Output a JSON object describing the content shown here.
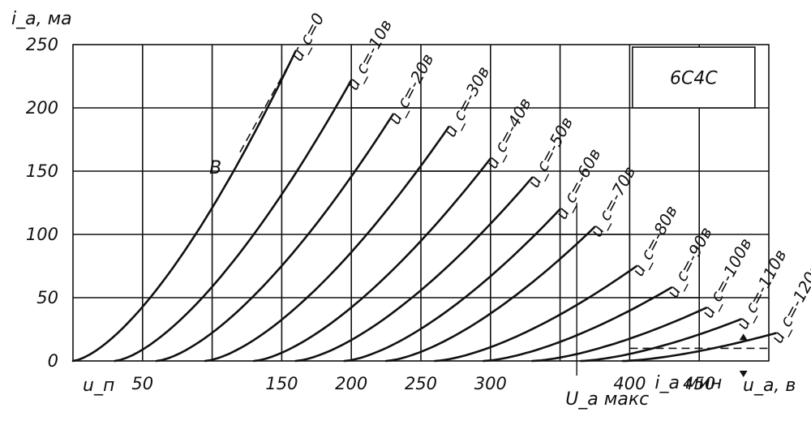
{
  "chart_data": {
    "type": "line",
    "title": "6С4С",
    "xlabel": "u_a, в",
    "ylabel": "i_a, ма",
    "xlim": [
      0,
      500
    ],
    "ylim": [
      0,
      250
    ],
    "x_ticks": [
      {
        "value": 50,
        "label": "50"
      },
      {
        "value": 150,
        "label": "150"
      },
      {
        "value": 200,
        "label": "200"
      },
      {
        "value": 250,
        "label": "250"
      },
      {
        "value": 300,
        "label": "300"
      },
      {
        "value": 400,
        "label": "400"
      },
      {
        "value": 450,
        "label": "450"
      }
    ],
    "y_ticks": [
      {
        "value": 0,
        "label": "0"
      },
      {
        "value": 50,
        "label": "50"
      },
      {
        "value": 100,
        "label": "100"
      },
      {
        "value": 150,
        "label": "150"
      },
      {
        "value": 200,
        "label": "200"
      },
      {
        "value": 250,
        "label": "250"
      }
    ],
    "grid": true,
    "series": [
      {
        "name": "u_c=0",
        "start": 0,
        "end": [
          160,
          245
        ]
      },
      {
        "name": "u_c=-10в",
        "start": 30,
        "end": [
          200,
          222
        ]
      },
      {
        "name": "u_c=-20в",
        "start": 60,
        "end": [
          230,
          195
        ]
      },
      {
        "name": "u_c=-30в",
        "start": 95,
        "end": [
          270,
          185
        ]
      },
      {
        "name": "u_c=-40в",
        "start": 130,
        "end": [
          300,
          160
        ]
      },
      {
        "name": "u_c=-50в",
        "start": 160,
        "end": [
          330,
          145
        ]
      },
      {
        "name": "u_c=-60в",
        "start": 195,
        "end": [
          350,
          120
        ]
      },
      {
        "name": "u_c=-70в",
        "start": 225,
        "end": [
          375,
          106
        ]
      },
      {
        "name": "u_c=-80в",
        "start": 260,
        "end": [
          405,
          75
        ]
      },
      {
        "name": "u_c=-90в",
        "start": 295,
        "end": [
          430,
          58
        ]
      },
      {
        "name": "u_c=-100в",
        "start": 330,
        "end": [
          455,
          42
        ]
      },
      {
        "name": "u_c=-110в",
        "start": 365,
        "end": [
          480,
          33
        ]
      },
      {
        "name": "u_c=-120в",
        "start": 395,
        "end": [
          505,
          22
        ]
      }
    ],
    "annotations": {
      "point_b": "B",
      "u_p": "u_п",
      "u_a_max": "U_а макс",
      "i_a_min": "i_а мин",
      "x_unit": "u_a, в"
    },
    "limit_lines": {
      "u_a_max": 362,
      "i_a_min": 10
    }
  }
}
